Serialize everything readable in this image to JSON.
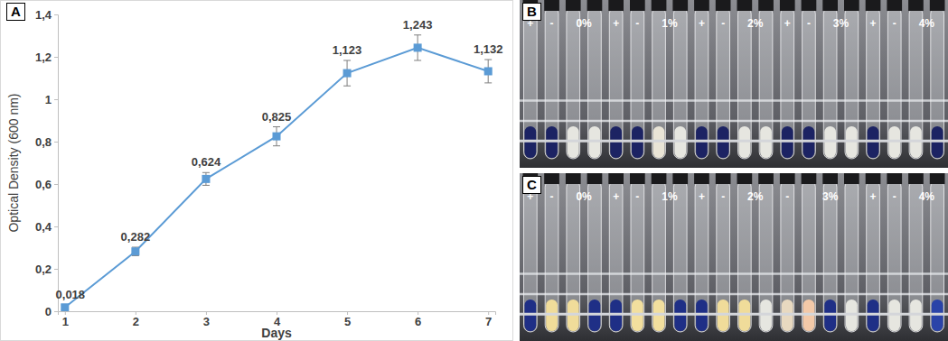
{
  "chart_data": {
    "type": "line",
    "title": "A",
    "x_label": "Days",
    "y_label": "Optical Density (600 nm)",
    "categories": [
      "1",
      "2",
      "3",
      "4",
      "5",
      "6",
      "7"
    ],
    "values": [
      0.018,
      0.282,
      0.624,
      0.825,
      1.123,
      1.243,
      1.132
    ],
    "errors": [
      0.012,
      0.02,
      0.03,
      0.045,
      0.06,
      0.06,
      0.055
    ],
    "value_labels": [
      "0,018",
      "0,282",
      "0,624",
      "0,825",
      "1,123",
      "1,243",
      "1,132"
    ],
    "ylim": [
      0,
      1.4
    ],
    "yticks": [
      0,
      {
        "value": 0.2,
        "label": "0,2"
      },
      {
        "value": 0.4,
        "label": "0,4"
      },
      {
        "value": 0.6,
        "label": "0,6"
      },
      {
        "value": 0.8,
        "label": "0,8"
      },
      1,
      {
        "value": 1.2,
        "label": "1,2"
      },
      {
        "value": 1.4,
        "label": "1,4"
      }
    ],
    "color": "#5b9bd5",
    "marker": "square",
    "line_style": "solid",
    "grid": false,
    "data_labels": true
  },
  "panels": [
    {
      "label": "B",
      "groups": [
        {
          "labels": [
            "+",
            "-",
            "0%"
          ],
          "tubes": [
            "#1c2363",
            "#1c2363",
            "#e6e6e0",
            "#e6e6e0"
          ]
        },
        {
          "labels": [
            "+",
            "-",
            "1%"
          ],
          "tubes": [
            "#1c2363",
            "#1c2363",
            "#e9e4d6",
            "#e6e6e0"
          ]
        },
        {
          "labels": [
            "+",
            "-",
            "2%"
          ],
          "tubes": [
            "#1c2363",
            "#1c2363",
            "#e6e6e0",
            "#e6e6e0"
          ]
        },
        {
          "labels": [
            "+",
            "-",
            "3%"
          ],
          "tubes": [
            "#1c2363",
            "#1c2363",
            "#e6e6e0",
            "#e6e6e0"
          ]
        },
        {
          "labels": [
            "+",
            "-",
            "4%"
          ],
          "tubes": [
            "#1c2363",
            "#e6e6e0",
            "#e6e6e0",
            "#1c2363"
          ]
        }
      ]
    },
    {
      "label": "C",
      "groups": [
        {
          "labels": [
            "+",
            "-",
            "0%"
          ],
          "tubes": [
            "#1f2f86",
            "#f0dc9a",
            "#f0dc9a",
            "#1f2f86"
          ]
        },
        {
          "labels": [
            "+",
            "-",
            "1%"
          ],
          "tubes": [
            "#1f2f86",
            "#f2df9e",
            "#f2df9e",
            "#1f2f86"
          ]
        },
        {
          "labels": [
            "+",
            "-",
            "2%"
          ],
          "tubes": [
            "#1f2f86",
            "#f0dc9a",
            "#f0dc9a",
            "#e6e6e0"
          ]
        },
        {
          "labels": [
            "-",
            "3%"
          ],
          "tubes": [
            "#e8d9c0",
            "#f3c9a8",
            "#1f2f86",
            "#e6e6e0"
          ]
        },
        {
          "labels": [
            "+",
            "-",
            "4%"
          ],
          "tubes": [
            "#1f2f86",
            "#e6e6e0",
            "#e6e6e0",
            "#2a43a8"
          ]
        }
      ]
    }
  ]
}
